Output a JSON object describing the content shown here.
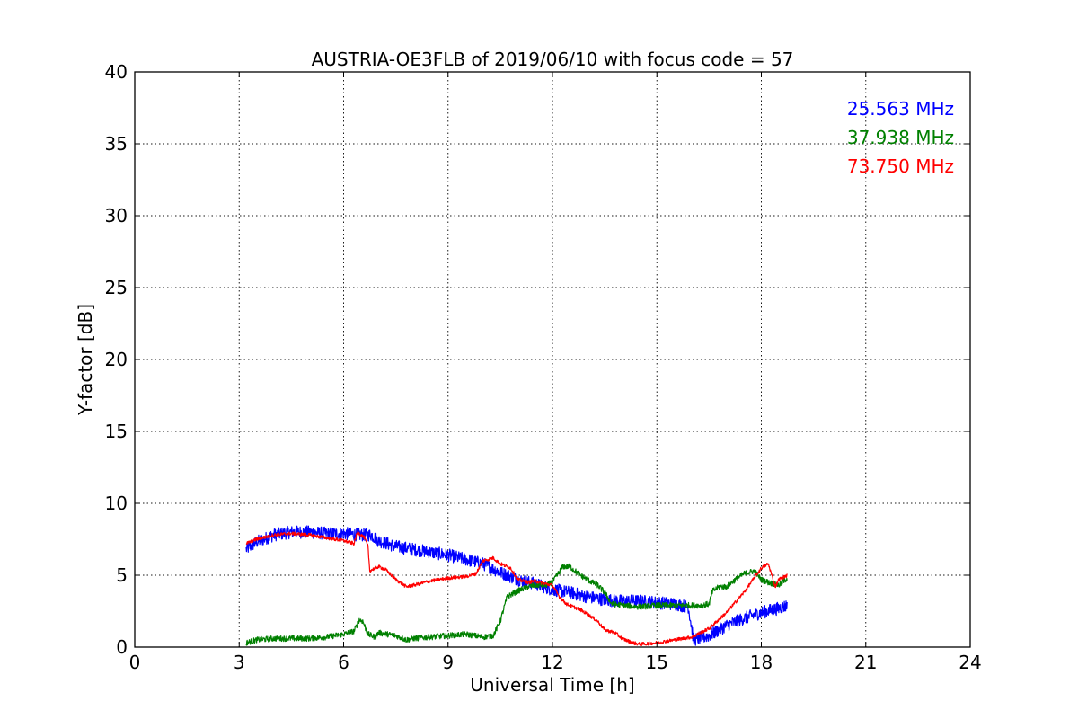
{
  "chart_data": {
    "type": "line",
    "title": "AUSTRIA-OE3FLB of 2019/06/10 with focus code = 57",
    "xlabel": "Universal Time [h]",
    "ylabel": "Y-factor [dB]",
    "xlim": [
      0,
      24
    ],
    "ylim": [
      0,
      40
    ],
    "xticks": [
      0,
      3,
      6,
      9,
      12,
      15,
      18,
      21,
      24
    ],
    "yticks": [
      0,
      5,
      10,
      15,
      20,
      25,
      30,
      35,
      40
    ],
    "grid": true,
    "legend_placement": "top-right",
    "series": [
      {
        "name": "25.563 MHz",
        "color": "#0000ff",
        "noise": 0.45,
        "x": [
          3.2,
          3.5,
          4.0,
          4.5,
          5.0,
          5.5,
          6.0,
          6.5,
          6.8,
          7.0,
          7.5,
          8.0,
          8.5,
          9.0,
          9.5,
          10.0,
          10.5,
          11.0,
          11.5,
          12.0,
          12.5,
          13.0,
          13.5,
          14.0,
          14.5,
          15.0,
          15.5,
          15.9,
          16.0,
          16.05,
          16.5,
          17.0,
          17.5,
          18.0,
          18.5,
          18.75
        ],
        "y": [
          6.8,
          7.3,
          7.8,
          8.0,
          8.0,
          7.9,
          7.9,
          7.8,
          7.8,
          7.4,
          7.0,
          6.8,
          6.6,
          6.4,
          6.1,
          5.8,
          5.2,
          4.7,
          4.4,
          4.0,
          3.8,
          3.5,
          3.3,
          3.2,
          3.2,
          3.1,
          3.0,
          2.8,
          1.4,
          0.5,
          0.8,
          1.5,
          2.0,
          2.4,
          2.7,
          2.9
        ]
      },
      {
        "name": "37.938 MHz",
        "color": "#008000",
        "noise": 0.2,
        "x": [
          3.2,
          3.5,
          4.0,
          5.0,
          5.5,
          6.0,
          6.3,
          6.45,
          6.55,
          6.7,
          6.9,
          7.0,
          7.5,
          7.8,
          8.0,
          8.5,
          9.0,
          9.5,
          10.0,
          10.3,
          10.5,
          10.7,
          11.0,
          11.3,
          11.5,
          11.8,
          12.0,
          12.3,
          12.5,
          12.8,
          13.0,
          13.3,
          13.5,
          13.7,
          14.0,
          14.5,
          15.0,
          15.5,
          16.0,
          16.3,
          16.5,
          16.6,
          16.8,
          17.0,
          17.2,
          17.5,
          17.8,
          18.0,
          18.2,
          18.5,
          18.75
        ],
        "y": [
          0.3,
          0.5,
          0.6,
          0.6,
          0.7,
          0.9,
          1.1,
          1.9,
          1.8,
          0.9,
          0.7,
          1.0,
          0.8,
          0.5,
          0.6,
          0.7,
          0.8,
          0.9,
          0.7,
          0.8,
          1.8,
          3.5,
          3.9,
          4.2,
          4.3,
          4.3,
          4.5,
          5.6,
          5.6,
          5.0,
          4.7,
          4.3,
          3.8,
          3.0,
          2.9,
          2.8,
          2.9,
          2.9,
          2.9,
          2.9,
          3.0,
          3.9,
          4.2,
          4.2,
          4.6,
          5.1,
          5.3,
          4.7,
          4.5,
          4.3,
          4.8
        ]
      },
      {
        "name": "73.750 MHz",
        "color": "#ff0000",
        "noise": 0.12,
        "x": [
          3.2,
          3.5,
          4.0,
          4.5,
          5.0,
          5.5,
          6.0,
          6.3,
          6.4,
          6.6,
          6.7,
          6.75,
          7.0,
          7.2,
          7.5,
          7.8,
          8.0,
          8.5,
          9.0,
          9.5,
          9.8,
          10.0,
          10.3,
          10.5,
          10.8,
          11.0,
          11.3,
          11.5,
          11.8,
          12.0,
          12.2,
          12.4,
          12.8,
          13.0,
          13.3,
          13.5,
          13.8,
          14.0,
          14.3,
          14.5,
          15.0,
          15.5,
          16.0,
          16.5,
          17.0,
          17.5,
          18.0,
          18.2,
          18.4,
          18.5,
          18.75
        ],
        "y": [
          7.2,
          7.5,
          7.8,
          7.9,
          7.8,
          7.6,
          7.4,
          7.2,
          8.0,
          7.6,
          7.0,
          5.3,
          5.6,
          5.4,
          4.7,
          4.2,
          4.3,
          4.6,
          4.8,
          4.9,
          5.1,
          6.0,
          6.2,
          5.8,
          5.5,
          4.7,
          4.5,
          4.6,
          4.4,
          4.3,
          3.5,
          3.0,
          2.6,
          2.3,
          1.8,
          1.2,
          1.0,
          0.6,
          0.3,
          0.2,
          0.3,
          0.5,
          0.7,
          1.3,
          2.4,
          3.8,
          5.5,
          5.8,
          4.2,
          4.7,
          5.0
        ]
      }
    ]
  }
}
